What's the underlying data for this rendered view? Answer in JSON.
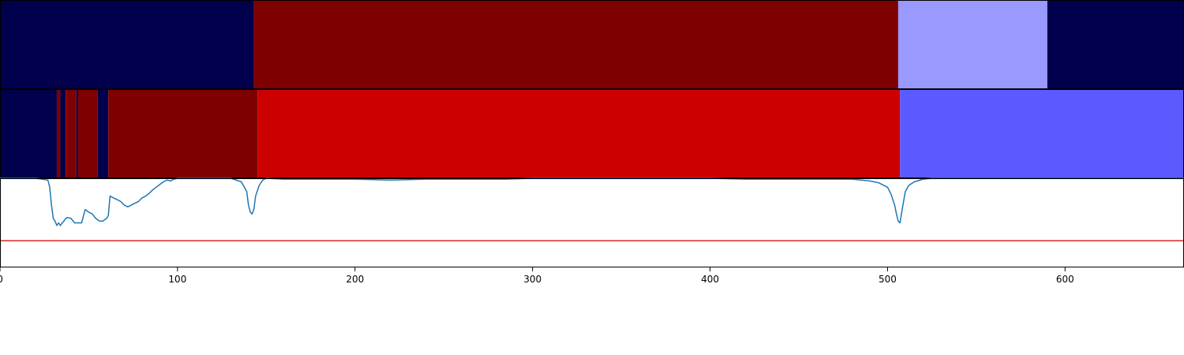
{
  "chart_data": {
    "type": "segmentation-timeline",
    "xlim": [
      0,
      667
    ],
    "x_ticks": [
      0,
      100,
      200,
      300,
      400,
      500,
      600
    ],
    "x_tick_labels": [
      "0",
      "100",
      "200",
      "300",
      "400",
      "500",
      "600"
    ],
    "grid": false,
    "legend": "none",
    "segment_rows": [
      {
        "segments": [
          {
            "start": 0,
            "end": 143,
            "color": "#00004c"
          },
          {
            "start": 143,
            "end": 506,
            "color": "#7f0000"
          },
          {
            "start": 506,
            "end": 590,
            "color": "#9999ff"
          },
          {
            "start": 590,
            "end": 667,
            "color": "#00004c"
          }
        ]
      },
      {
        "segments": [
          {
            "start": 0,
            "end": 32,
            "color": "#00004c"
          },
          {
            "start": 32,
            "end": 34,
            "color": "#7f0000"
          },
          {
            "start": 34,
            "end": 37,
            "color": "#00004c"
          },
          {
            "start": 37,
            "end": 43,
            "color": "#7f0000"
          },
          {
            "start": 43,
            "end": 44,
            "color": "#00004c"
          },
          {
            "start": 44,
            "end": 55,
            "color": "#7f0000"
          },
          {
            "start": 55,
            "end": 61,
            "color": "#00004c"
          },
          {
            "start": 61,
            "end": 145,
            "color": "#7f0000"
          },
          {
            "start": 145,
            "end": 507,
            "color": "#cc0000"
          },
          {
            "start": 507,
            "end": 667,
            "color": "#5a5aff"
          }
        ]
      }
    ],
    "line_series": {
      "color": "#1f77b4",
      "ylim": [
        0,
        1
      ],
      "x": [
        0,
        10,
        20,
        27,
        28,
        29,
        30,
        31,
        32,
        33,
        34,
        35,
        36,
        37,
        38,
        40,
        42,
        44,
        46,
        48,
        50,
        52,
        54,
        56,
        58,
        60,
        61,
        62,
        64,
        66,
        68,
        70,
        72,
        74,
        76,
        78,
        80,
        82,
        84,
        86,
        88,
        90,
        92,
        94,
        96,
        98,
        100,
        105,
        110,
        120,
        130,
        136,
        139,
        140,
        141,
        142,
        143,
        144,
        146,
        148,
        150,
        160,
        180,
        200,
        219,
        220,
        240,
        260,
        285,
        300,
        320,
        340,
        380,
        400,
        420,
        460,
        476,
        480,
        490,
        495,
        500,
        502,
        504,
        505,
        506,
        507,
        508,
        510,
        512,
        515,
        520,
        525,
        540,
        600,
        667
      ],
      "y": [
        1.0,
        1.0,
        1.0,
        0.98,
        0.9,
        0.7,
        0.55,
        0.52,
        0.47,
        0.5,
        0.47,
        0.5,
        0.52,
        0.55,
        0.56,
        0.55,
        0.5,
        0.5,
        0.5,
        0.65,
        0.62,
        0.6,
        0.55,
        0.52,
        0.52,
        0.55,
        0.58,
        0.8,
        0.78,
        0.76,
        0.74,
        0.7,
        0.68,
        0.7,
        0.72,
        0.74,
        0.78,
        0.8,
        0.83,
        0.87,
        0.9,
        0.93,
        0.96,
        0.98,
        0.97,
        0.99,
        1.0,
        1.0,
        1.0,
        1.0,
        1.0,
        0.96,
        0.85,
        0.7,
        0.62,
        0.6,
        0.65,
        0.8,
        0.92,
        0.98,
        1.0,
        0.99,
        0.99,
        0.99,
        0.98,
        0.98,
        0.99,
        0.99,
        0.99,
        1.0,
        1.0,
        1.0,
        1.0,
        1.0,
        0.99,
        0.99,
        0.99,
        0.99,
        0.97,
        0.95,
        0.9,
        0.82,
        0.7,
        0.6,
        0.52,
        0.5,
        0.62,
        0.85,
        0.92,
        0.96,
        0.99,
        1.0,
        1.0,
        1.0,
        1.0
      ]
    },
    "threshold_line": {
      "y": 0.3,
      "color": "#d62728"
    }
  }
}
